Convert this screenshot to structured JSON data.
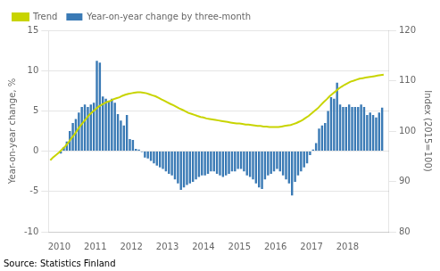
{
  "chart_data": {
    "type": "bar",
    "ylabel": "Year-on-year change, %",
    "y2label": "Index (2015=100)",
    "annotations": [
      "Source: Statistics Finland"
    ],
    "xlim": [
      2009.7,
      2019.15
    ],
    "xticks": [
      2010,
      2011,
      2012,
      2013,
      2014,
      2015,
      2016,
      2017,
      2018
    ],
    "ylim": [
      -10,
      15
    ],
    "yticks": [
      -10,
      -5,
      0,
      5,
      10,
      15
    ],
    "y2lim": [
      80,
      120
    ],
    "y2ticks": [
      80,
      90,
      100,
      110,
      120
    ],
    "grid": "y",
    "legend": "upper left",
    "series": [
      {
        "name": "Trend",
        "type": "line",
        "axis": "y2",
        "color": "#c8d400",
        "x": [
          2009.75,
          2009.83,
          2009.92,
          2010.0,
          2010.08,
          2010.17,
          2010.25,
          2010.33,
          2010.42,
          2010.5,
          2010.58,
          2010.67,
          2010.75,
          2010.83,
          2010.92,
          2011.0,
          2011.08,
          2011.17,
          2011.25,
          2011.33,
          2011.42,
          2011.5,
          2011.58,
          2011.67,
          2011.75,
          2011.83,
          2011.92,
          2012.0,
          2012.08,
          2012.17,
          2012.25,
          2012.33,
          2012.42,
          2012.5,
          2012.58,
          2012.67,
          2012.75,
          2012.83,
          2012.92,
          2013.0,
          2013.08,
          2013.17,
          2013.25,
          2013.33,
          2013.42,
          2013.5,
          2013.58,
          2013.67,
          2013.75,
          2013.83,
          2013.92,
          2014.0,
          2014.08,
          2014.17,
          2014.25,
          2014.33,
          2014.42,
          2014.5,
          2014.58,
          2014.67,
          2014.75,
          2014.83,
          2014.92,
          2015.0,
          2015.08,
          2015.17,
          2015.25,
          2015.33,
          2015.42,
          2015.5,
          2015.58,
          2015.67,
          2015.75,
          2015.83,
          2015.92,
          2016.0,
          2016.08,
          2016.17,
          2016.25,
          2016.33,
          2016.42,
          2016.5,
          2016.58,
          2016.67,
          2016.75,
          2016.83,
          2016.92,
          2017.0,
          2017.08,
          2017.17,
          2017.25,
          2017.33,
          2017.42,
          2017.5,
          2017.58,
          2017.67,
          2017.75,
          2017.83,
          2017.92,
          2018.0,
          2018.08,
          2018.17,
          2018.25,
          2018.33,
          2018.42,
          2018.5,
          2018.58,
          2018.67,
          2018.75,
          2018.83,
          2018.92,
          2019.0
        ],
        "values": [
          94.2,
          94.8,
          95.3,
          95.8,
          96.4,
          97.0,
          97.7,
          98.5,
          99.3,
          100.2,
          101.0,
          101.8,
          102.5,
          103.2,
          103.8,
          104.3,
          104.8,
          105.2,
          105.5,
          105.8,
          106.0,
          106.3,
          106.5,
          106.7,
          107.0,
          107.2,
          107.4,
          107.5,
          107.6,
          107.7,
          107.7,
          107.6,
          107.5,
          107.3,
          107.1,
          106.9,
          106.6,
          106.3,
          106.0,
          105.7,
          105.4,
          105.1,
          104.8,
          104.5,
          104.2,
          103.9,
          103.6,
          103.4,
          103.2,
          103.0,
          102.8,
          102.7,
          102.5,
          102.4,
          102.3,
          102.2,
          102.1,
          102.0,
          101.9,
          101.8,
          101.7,
          101.6,
          101.5,
          101.5,
          101.4,
          101.3,
          101.3,
          101.2,
          101.1,
          101.0,
          101.0,
          100.9,
          100.9,
          100.8,
          100.8,
          100.8,
          100.8,
          100.9,
          101.0,
          101.1,
          101.2,
          101.4,
          101.6,
          101.9,
          102.2,
          102.6,
          103.0,
          103.5,
          104.0,
          104.5,
          105.1,
          105.7,
          106.3,
          106.9,
          107.4,
          107.9,
          108.4,
          108.8,
          109.2,
          109.5,
          109.8,
          110.0,
          110.2,
          110.4,
          110.5,
          110.6,
          110.7,
          110.8,
          110.9,
          111.0,
          111.1,
          111.2
        ]
      },
      {
        "name": "Year-on-year change by three-month",
        "type": "bar",
        "color": "#3a7ab5",
        "x": [
          2010.042,
          2010.125,
          2010.208,
          2010.292,
          2010.375,
          2010.458,
          2010.542,
          2010.625,
          2010.708,
          2010.792,
          2010.875,
          2010.958,
          2011.042,
          2011.125,
          2011.208,
          2011.292,
          2011.375,
          2011.458,
          2011.542,
          2011.625,
          2011.708,
          2011.792,
          2011.875,
          2011.958,
          2012.042,
          2012.125,
          2012.208,
          2012.292,
          2012.375,
          2012.458,
          2012.542,
          2012.625,
          2012.708,
          2012.792,
          2012.875,
          2012.958,
          2013.042,
          2013.125,
          2013.208,
          2013.292,
          2013.375,
          2013.458,
          2013.542,
          2013.625,
          2013.708,
          2013.792,
          2013.875,
          2013.958,
          2014.042,
          2014.125,
          2014.208,
          2014.292,
          2014.375,
          2014.458,
          2014.542,
          2014.625,
          2014.708,
          2014.792,
          2014.875,
          2014.958,
          2015.042,
          2015.125,
          2015.208,
          2015.292,
          2015.375,
          2015.458,
          2015.542,
          2015.625,
          2015.708,
          2015.792,
          2015.875,
          2015.958,
          2016.042,
          2016.125,
          2016.208,
          2016.292,
          2016.375,
          2016.458,
          2016.542,
          2016.625,
          2016.708,
          2016.792,
          2016.875,
          2016.958,
          2017.042,
          2017.125,
          2017.208,
          2017.292,
          2017.375,
          2017.458,
          2017.542,
          2017.625,
          2017.708,
          2017.792,
          2017.875,
          2017.958,
          2018.042,
          2018.125,
          2018.208,
          2018.292,
          2018.375,
          2018.458,
          2018.542,
          2018.625,
          2018.708,
          2018.792,
          2018.875,
          2018.958
        ],
        "values": [
          -0.3,
          0.5,
          1.2,
          2.5,
          3.5,
          4.0,
          4.8,
          5.5,
          5.8,
          5.5,
          5.8,
          6.0,
          11.2,
          11.0,
          6.8,
          6.5,
          6.2,
          6.5,
          6.0,
          4.6,
          3.8,
          3.2,
          4.5,
          1.5,
          1.4,
          0.3,
          0.2,
          -0.1,
          -0.8,
          -0.9,
          -1.2,
          -1.5,
          -1.8,
          -2.0,
          -2.2,
          -2.5,
          -2.8,
          -3.0,
          -3.5,
          -4.0,
          -4.8,
          -4.5,
          -4.2,
          -4.0,
          -3.8,
          -3.5,
          -3.2,
          -3.0,
          -3.0,
          -2.8,
          -2.5,
          -2.5,
          -2.8,
          -3.0,
          -3.2,
          -3.0,
          -2.8,
          -2.5,
          -2.5,
          -2.2,
          -2.2,
          -2.5,
          -3.0,
          -3.2,
          -3.5,
          -4.0,
          -4.5,
          -4.7,
          -3.5,
          -3.0,
          -2.8,
          -2.5,
          -2.2,
          -2.5,
          -3.0,
          -3.5,
          -4.0,
          -5.5,
          -3.8,
          -3.0,
          -2.5,
          -2.0,
          -1.5,
          -0.5,
          0.2,
          1.0,
          2.8,
          3.2,
          3.5,
          5.0,
          6.7,
          6.5,
          8.5,
          5.8,
          5.5,
          5.5,
          5.8,
          5.5,
          5.5,
          5.5,
          5.8,
          5.5,
          4.5,
          4.8,
          4.5,
          4.2,
          4.8,
          5.4
        ]
      }
    ]
  }
}
